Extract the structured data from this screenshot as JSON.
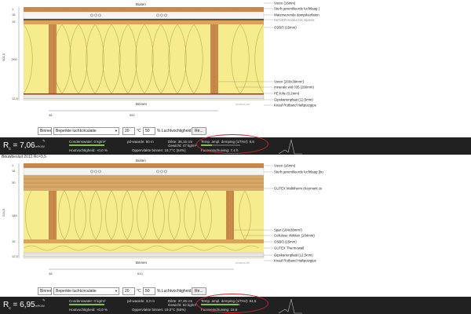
{
  "top": {
    "outside_label": "Buiten",
    "inside_label": "Binnen",
    "watermark": "ubakus.de",
    "dim_left_total": "301,5",
    "dim_left_top": [
      "1",
      "16",
      "15"
    ],
    "dim_left_mid": "260",
    "dim_left_bot": "12,5",
    "dim_bottom_a": "38",
    "dim_bottom_b": "552",
    "layers": [
      "Vuren (16mm)",
      "Sterk geventileerde luchtlaag (",
      "Waterwerende dampdoorlaten",
      "ISOVER Kontur KK Xpress",
      "OSB/3 (15mm)",
      "Vuren (260x38mm²)",
      "minerale wol 035 (260mm)",
      "PE-folie (0,2mm)",
      "Gipskartonplaat (12,5mm)",
      "Knauf Rotband Haftputzgips"
    ]
  },
  "top_controls": {
    "side_value": "Binnen",
    "climate_value": "Beperkte luchtcirculatie",
    "temp_value": "20",
    "temp_unit": "°C",
    "rh_value": "50",
    "rh_unit": "% Luchtvochtigheid",
    "button_label": "Re..."
  },
  "top_results": {
    "r_label": "R",
    "r_sub": "c",
    "r_value": "= 7,06",
    "r_unit": "m²K/W",
    "condensate": "Condenswater: 0 kg/m²",
    "drying": "Houtvochtigheid: +0,0 %",
    "sd": "pd-waarde: 50 m",
    "thickness": "Dikte: 36,15 cm",
    "weight": "Gewicht: 47 kg/m²",
    "surface_temp": "Oppervlakte binnen: 18,7°C (54%)",
    "damping": "Temp. ampl. demping (1/TAV): 8,6",
    "phase": "Faseverschuiving: 7,4 h",
    "footer": "Bouwbesluit 2012 Rc=3,5"
  },
  "bottom": {
    "outside_label": "Buiten",
    "inside_label": "Binnen",
    "watermark": "ubakus.de",
    "dim_left_total": "214,5",
    "dim_left_top": [
      "1",
      "16",
      "30"
    ],
    "dim_left_mid": "184",
    "dim_left_bot": [
      "15",
      "12,5"
    ],
    "dim_bottom_a": "38",
    "dim_bottom_b": "610",
    "layers": [
      "Vuren (16mm)",
      "Sterk geventileerde luchtlaag (bu",
      "GUTEX Multitherm (Keymark ze",
      "Spar (184x38mm²)",
      "Cellulose vlokken (184mm)",
      "OSB/3 (15mm)",
      "GUTEX Thermowall",
      "Gipskartonplaat (12,5mm)",
      "Knauf Rotband Haftputzgips"
    ]
  },
  "bottom_controls": {
    "side_value": "Binnen",
    "climate_value": "Beperkte luchtcirculatie",
    "temp_value": "20",
    "temp_unit": "°C",
    "rh_value": "50",
    "rh_unit": "% Luchtvochtigheid",
    "button_label": "Re..."
  },
  "bottom_results": {
    "r_label": "R",
    "r_sub": "c",
    "r_value": "= 6,95",
    "r_unit": "m²K/W",
    "condensate": "Condenswater: 0 kg/m²",
    "drying": "Houtvochtigheid: +0,0 %",
    "sd": "pd-waarde: 3,0 m",
    "thickness": "Dikte: 37,45 cm",
    "weight": "Gewicht: 62 kg/m²",
    "surface_temp": "Oppervlakte binnen: 19,0°C (55%)",
    "damping": "Temp. ampl. demping (1/TAV): 64,5",
    "phase": "Faseverschuiving: 16,6"
  },
  "colors": {
    "wood": "#c98a49",
    "insulation": "#f6ec8d",
    "osb": "#d9a35c",
    "vapor_red": "#c0272d",
    "result_bar": "#212121",
    "indicator_green": "#7fc24b"
  }
}
